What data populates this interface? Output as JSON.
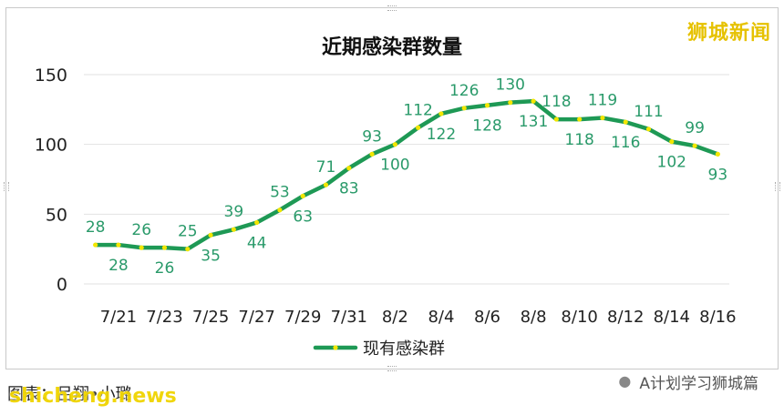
{
  "chart_title": "近期感染群数量",
  "brand_logo_text": "狮城新闻",
  "credit_text": "图表：吕翔•小璐",
  "watermark_text": "shicheng.news",
  "account_text": "A计划学习狮城篇",
  "account_icon": "wechat-icon",
  "colors": {
    "line": "#1e9955",
    "marker": "#f2e600",
    "label": "#2a9a6a",
    "grid": "#e2e2e2",
    "axis_text": "#222222"
  },
  "chart_data": {
    "type": "line",
    "title": "近期感染群数量",
    "xlabel": "",
    "ylabel": "",
    "ylim": [
      0,
      150
    ],
    "yticks": [
      0,
      50,
      100,
      150
    ],
    "grid": "horizontal",
    "legend_position": "bottom",
    "x": [
      "7/20",
      "7/21",
      "7/22",
      "7/23",
      "7/24",
      "7/25",
      "7/26",
      "7/27",
      "7/28",
      "7/29",
      "7/30",
      "7/31",
      "8/1",
      "8/2",
      "8/3",
      "8/4",
      "8/5",
      "8/6",
      "8/7",
      "8/8",
      "8/9",
      "8/10",
      "8/11",
      "8/12",
      "8/13",
      "8/14",
      "8/15",
      "8/16"
    ],
    "xtick_labels": [
      "7/21",
      "7/23",
      "7/25",
      "7/27",
      "7/29",
      "7/31",
      "8/2",
      "8/4",
      "8/6",
      "8/8",
      "8/10",
      "8/12",
      "8/14",
      "8/16"
    ],
    "series": [
      {
        "name": "现有感染群",
        "values": [
          28,
          28,
          26,
          26,
          25,
          35,
          39,
          44,
          53,
          63,
          71,
          83,
          93,
          100,
          112,
          122,
          126,
          128,
          130,
          131,
          118,
          118,
          119,
          116,
          111,
          102,
          99,
          93
        ]
      }
    ],
    "label_offsets": [
      -1,
      1,
      -1,
      1,
      -1,
      1,
      -1,
      1,
      -1,
      1,
      -1,
      1,
      -1,
      1,
      -1,
      1,
      -1,
      1,
      -1,
      1,
      -1,
      1,
      -1,
      1,
      -1,
      1,
      -1,
      1
    ]
  }
}
